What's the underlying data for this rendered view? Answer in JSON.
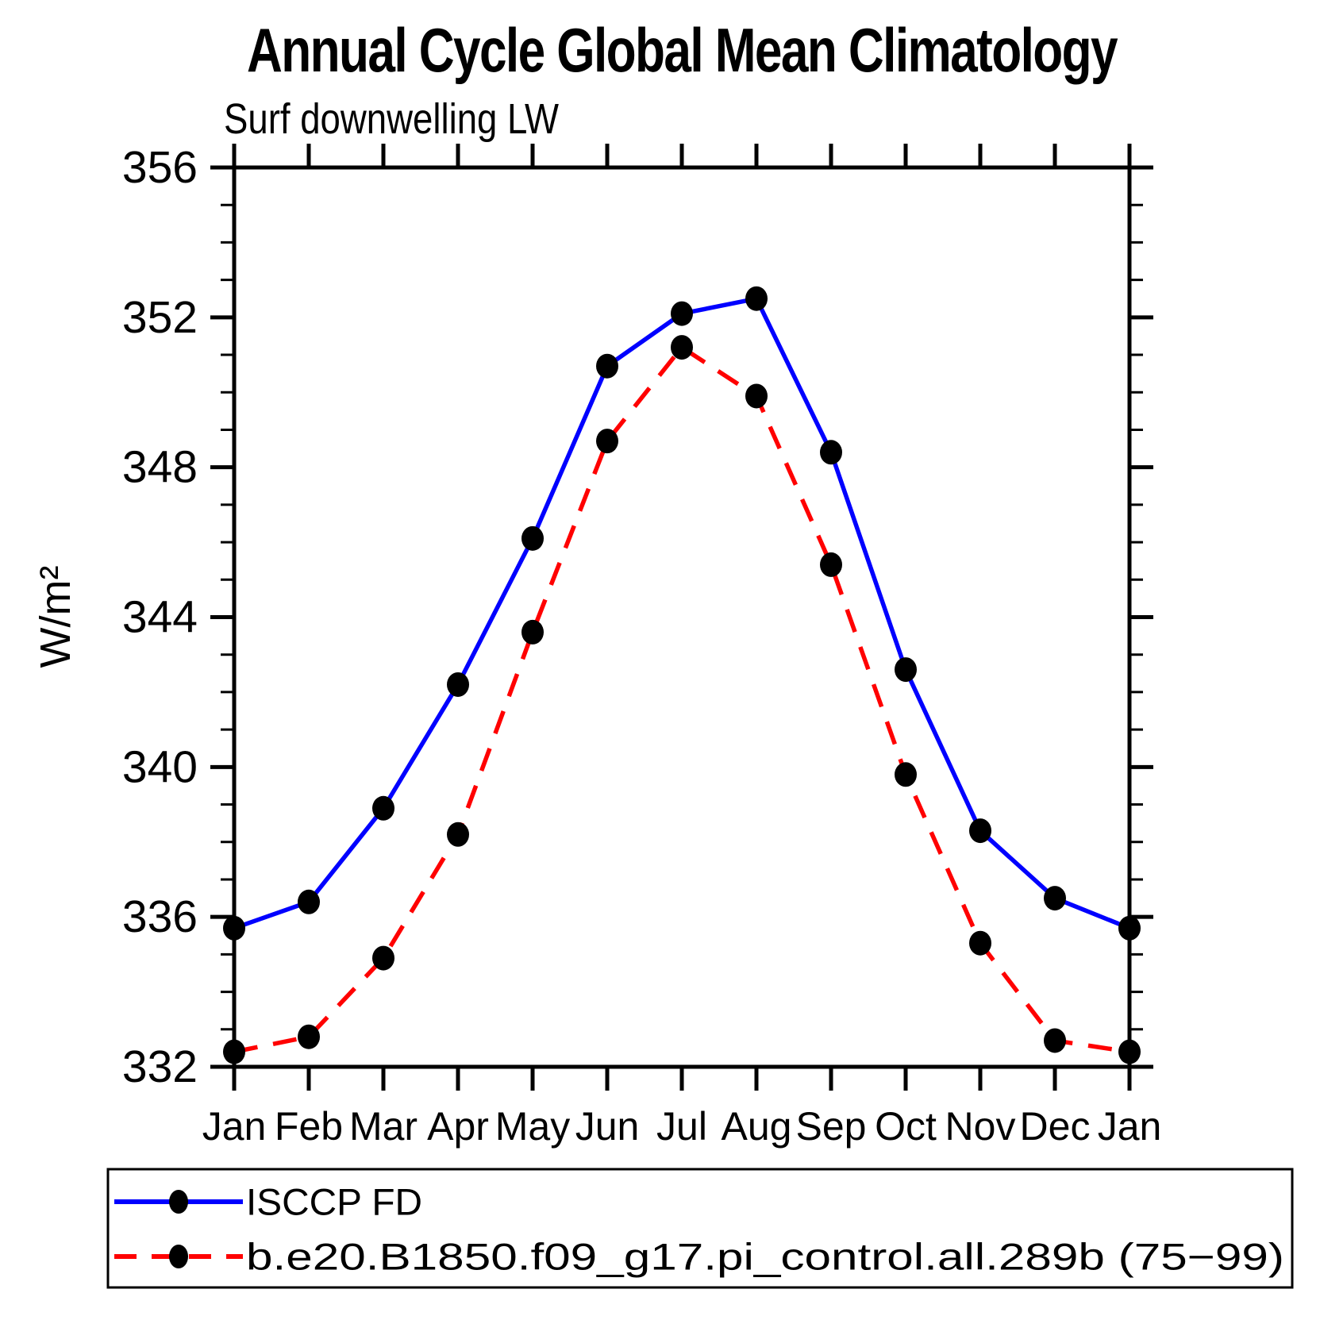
{
  "header": {
    "title": "Annual Cycle Global Mean Climatology",
    "subtitle": "Surf downwelling LW"
  },
  "axes": {
    "ylabel": "W/m²"
  },
  "colors": {
    "obs_line": "#0000ff",
    "model_line": "#ff0000",
    "marker": "#000000",
    "axis": "#000000"
  },
  "chart_data": {
    "type": "line",
    "title": "Annual Cycle Global Mean Climatology",
    "subtitle": "Surf downwelling LW",
    "ylabel": "W/m²",
    "categories": [
      "Jan",
      "Feb",
      "Mar",
      "Apr",
      "May",
      "Jun",
      "Jul",
      "Aug",
      "Sep",
      "Oct",
      "Nov",
      "Dec",
      "Jan"
    ],
    "ylim": [
      332,
      356
    ],
    "yticks_major": [
      332,
      336,
      340,
      344,
      348,
      352,
      356
    ],
    "minor_tick_interval": 1,
    "grid": false,
    "legend_position": "bottom",
    "series": [
      {
        "name": "ISCCP FD",
        "color": "#0000ff",
        "style": "solid",
        "marker": "dot",
        "values": [
          335.7,
          336.4,
          338.9,
          342.2,
          346.1,
          350.7,
          352.1,
          352.5,
          348.4,
          342.6,
          338.3,
          336.5,
          335.7
        ]
      },
      {
        "name": "b.e20.B1850.f09_g17.pi_control.all.289b (75−99)",
        "color": "#ff0000",
        "style": "dashed",
        "marker": "dot",
        "values": [
          332.4,
          332.8,
          334.9,
          338.2,
          343.6,
          348.7,
          351.2,
          349.9,
          345.4,
          339.8,
          335.3,
          332.7,
          332.4
        ]
      }
    ]
  }
}
